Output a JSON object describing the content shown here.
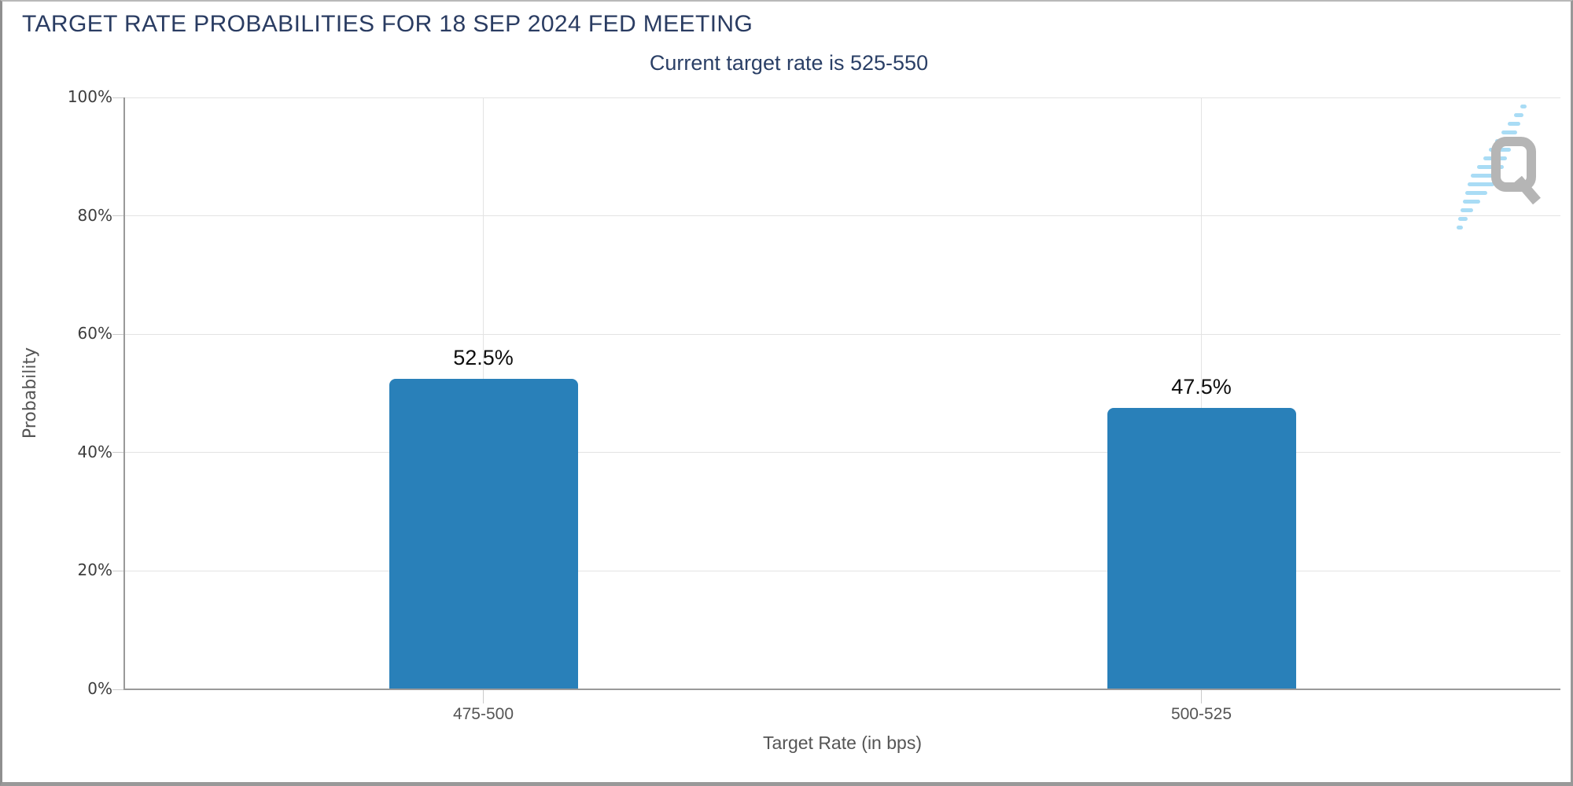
{
  "page": {
    "title": "TARGET RATE PROBABILITIES FOR 18 SEP 2024 FED MEETING",
    "subtitle": "Current target rate is 525-550"
  },
  "watermark": {
    "name": "quikstrike-logo",
    "letter": "Q"
  },
  "colors": {
    "bar": "#2980b9",
    "title_navy": "#2a3c62",
    "subtitle_navy": "#2a3f66",
    "gridline": "#e3e3e3",
    "axis": "#999999",
    "tick": "#cbcbcb",
    "watermark_gray": "#b5b5b5",
    "watermark_blue": "#a9dcf5"
  },
  "chart_data": {
    "type": "bar",
    "title": "TARGET RATE PROBABILITIES FOR 18 SEP 2024 FED MEETING",
    "subtitle": "Current target rate is 525-550",
    "categories": [
      "475-500",
      "500-525"
    ],
    "values": [
      52.5,
      47.5
    ],
    "value_labels": [
      "52.5%",
      "47.5%"
    ],
    "xlabel": "Target Rate (in bps)",
    "ylabel": "Probability",
    "ylim": [
      0,
      100
    ],
    "ytick_step": 20,
    "ytick_labels": [
      "0%",
      "20%",
      "40%",
      "60%",
      "80%",
      "100%"
    ],
    "grid": true,
    "legend": "none",
    "bar_color": "#2980b9"
  }
}
